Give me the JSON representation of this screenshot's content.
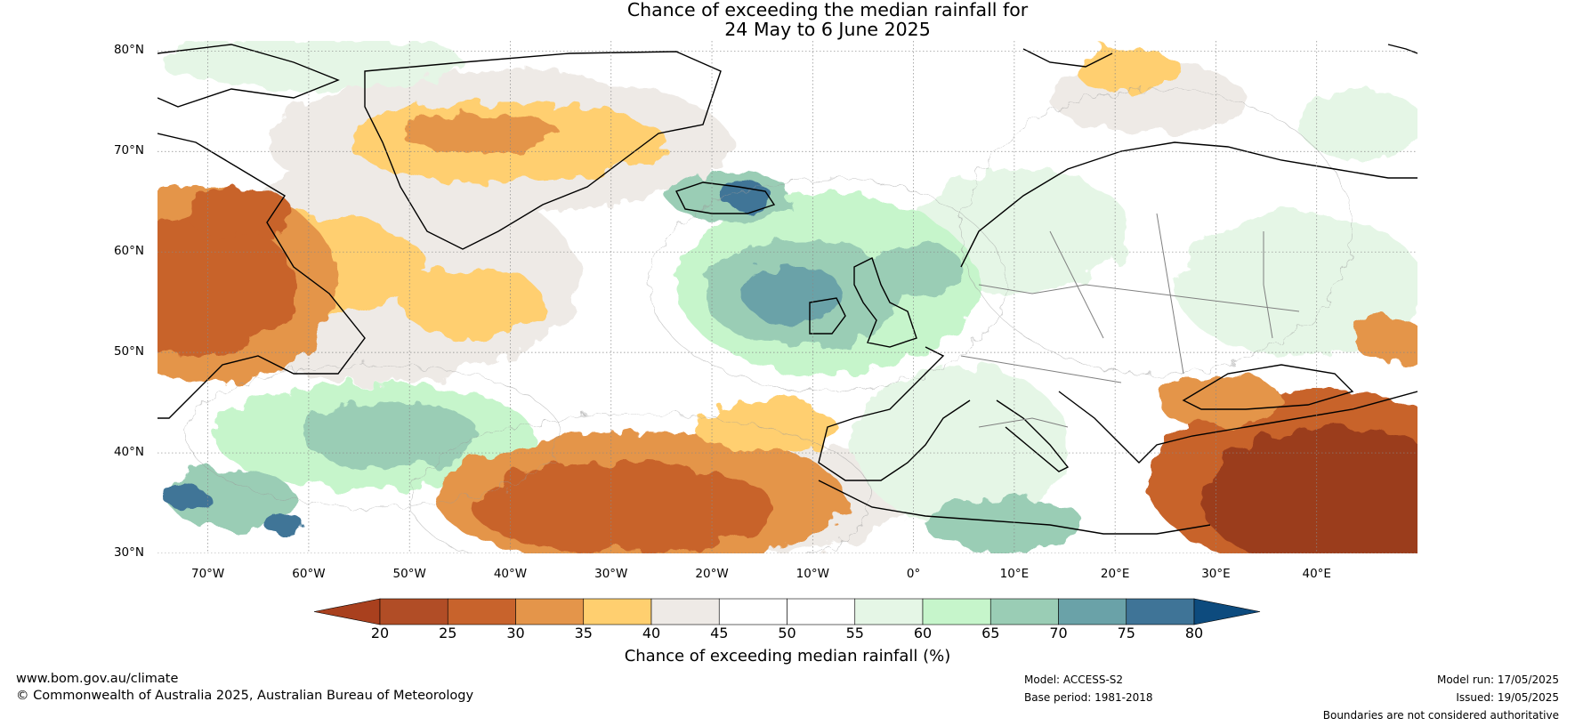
{
  "title": {
    "line1": "Chance of exceeding the median rainfall for",
    "line2": "24 May to 6 June 2025"
  },
  "map": {
    "projection": "equirectangular",
    "lon_range": [
      -75,
      50
    ],
    "lat_range": [
      30,
      81
    ],
    "lat_labels": [
      "80°N",
      "70°N",
      "60°N",
      "50°N",
      "40°N",
      "30°N"
    ],
    "lon_labels": [
      "70°W",
      "60°W",
      "50°W",
      "40°W",
      "30°W",
      "20°W",
      "10°W",
      "0°",
      "10°E",
      "20°E",
      "30°E",
      "40°E"
    ],
    "colors": {
      "dry_strong": "#9b3c1a",
      "dry": "#c8632c",
      "dry_mild": "#e4954a",
      "dry_slight": "#ffcf6f",
      "near_dry": "#eeeae6",
      "neutral": "#ffffff",
      "near_wet": "#e5f6e6",
      "wet_slight": "#c6f5cb",
      "wet_mild": "#9acdb5",
      "wet": "#6aa2a8",
      "wet_strong": "#3f7497",
      "wet_extreme": "#0d4b7e",
      "land_outline": "#000000",
      "border": "#808080"
    }
  },
  "colorbar": {
    "ticks": [
      "20",
      "25",
      "30",
      "35",
      "40",
      "45",
      "50",
      "55",
      "60",
      "65",
      "70",
      "75",
      "80"
    ],
    "colors": [
      "#a9401e",
      "#b14d26",
      "#c8632c",
      "#e4954a",
      "#ffcf6f",
      "#eeeae6",
      "#ffffff",
      "#ffffff",
      "#e5f6e6",
      "#c6f5cb",
      "#9acdb5",
      "#6aa2a8",
      "#3f7497",
      "#0d4b7e"
    ],
    "label": "Chance of exceeding median rainfall (%)"
  },
  "footer": {
    "site": "www.bom.gov.au/climate",
    "copyright": "© Commonwealth of Australia 2025, Australian Bureau of Meteorology",
    "model": "Model: ACCESS-S2",
    "base_period": "Base period: 1981-2018",
    "model_run": "Model run: 17/05/2025",
    "issued": "Issued: 19/05/2025",
    "disclaimer": "Boundaries are not considered authoritative"
  }
}
